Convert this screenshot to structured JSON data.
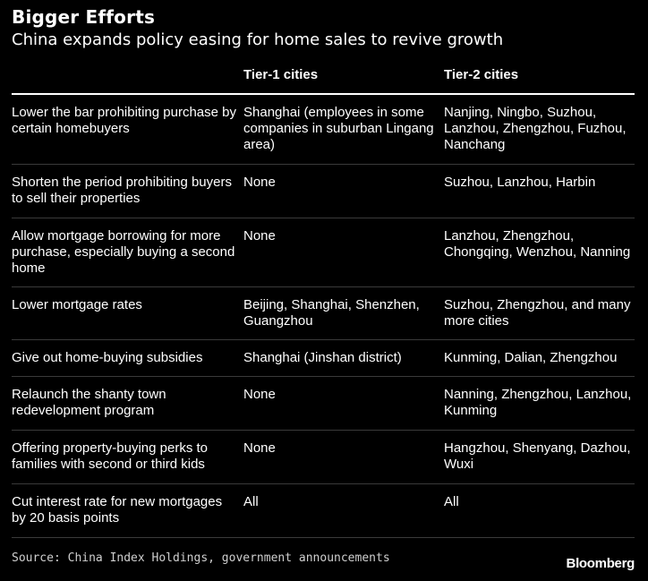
{
  "chart_data": {
    "type": "table",
    "title": "Bigger Efforts",
    "subtitle": "China expands policy easing for home sales to revive growth",
    "columns": [
      "",
      "Tier-1 cities",
      "Tier-2 cities"
    ],
    "rows": [
      {
        "policy": "Lower the bar prohibiting purchase by certain homebuyers",
        "tier1": "Shanghai (employees in some companies in suburban Lingang area)",
        "tier2": "Nanjing, Ningbo, Suzhou, Lanzhou, Zhengzhou, Fuzhou, Nanchang"
      },
      {
        "policy": "Shorten the period prohibiting buyers to sell their properties",
        "tier1": "None",
        "tier2": "Suzhou, Lanzhou, Harbin"
      },
      {
        "policy": "Allow mortgage borrowing for more purchase, especially buying a second home",
        "tier1": "None",
        "tier2": "Lanzhou, Zhengzhou, Chongqing, Wenzhou, Nanning"
      },
      {
        "policy": "Lower mortgage rates",
        "tier1": "Beijing, Shanghai, Shenzhen, Guangzhou",
        "tier2": "Suzhou, Zhengzhou, and many more cities"
      },
      {
        "policy": "Give out home-buying subsidies",
        "tier1": "Shanghai (Jinshan district)",
        "tier2": "Kunming, Dalian, Zhengzhou"
      },
      {
        "policy": "Relaunch the shanty town redevelopment program",
        "tier1": "None",
        "tier2": "Nanning, Zhengzhou, Lanzhou, Kunming"
      },
      {
        "policy": "Offering property-buying perks to families with second or third kids",
        "tier1": "None",
        "tier2": "Hangzhou, Shenyang, Dazhou, Wuxi"
      },
      {
        "policy": "Cut interest rate for new mortgages by 20 basis points",
        "tier1": "All",
        "tier2": "All"
      }
    ],
    "source": "Source: China Index Holdings, government announcements",
    "brand": "Bloomberg"
  },
  "colors": {
    "background": "#000000",
    "text": "#ffffff",
    "header_rule": "#ffffff",
    "row_rule": "#3a3a3a",
    "source_text": "#cfcfcf"
  }
}
